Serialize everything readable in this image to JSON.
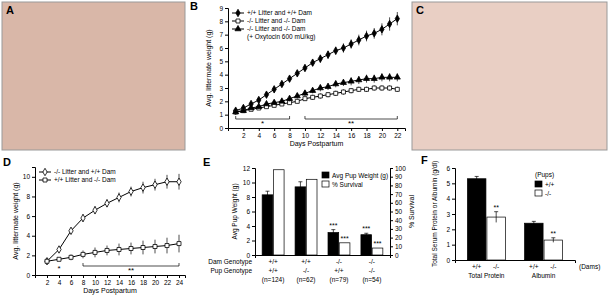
{
  "photos": [
    {
      "panel_label": "A"
    },
    {
      "panel_label": "C"
    }
  ],
  "chart_data": [
    {
      "panel_label": "B",
      "type": "line",
      "x": [
        1,
        2,
        3,
        4,
        5,
        6,
        7,
        8,
        9,
        10,
        11,
        12,
        13,
        14,
        15,
        16,
        17,
        18,
        19,
        20,
        21,
        22
      ],
      "xlim": [
        0,
        23
      ],
      "xticks": [
        2,
        4,
        6,
        8,
        10,
        12,
        14,
        16,
        18,
        20,
        22
      ],
      "ylim": [
        0,
        9
      ],
      "yticks": [
        0,
        1,
        2,
        3,
        4,
        5,
        6,
        7,
        8,
        9
      ],
      "x_label": "Days Postpartum",
      "y_label": "Avg. littermate weight (g)",
      "legend": "top-left",
      "legend_note": "(+ Oxytocin 600 mU/kg)",
      "series": [
        {
          "name": "+/+ Litter and +/+ Dam",
          "color": "#000000",
          "marker": "diamond",
          "values": [
            1.3,
            1.5,
            1.8,
            2.1,
            2.5,
            2.9,
            3.3,
            3.7,
            4.1,
            4.5,
            4.9,
            5.2,
            5.5,
            5.8,
            6.0,
            6.3,
            6.6,
            6.9,
            7.1,
            7.4,
            7.8,
            8.2
          ],
          "errors": [
            0.05,
            0.05,
            0.1,
            0.1,
            0.1,
            0.15,
            0.15,
            0.2,
            0.2,
            0.25,
            0.25,
            0.3,
            0.3,
            0.3,
            0.35,
            0.35,
            0.4,
            0.4,
            0.4,
            0.45,
            0.5,
            0.5
          ]
        },
        {
          "name": "-/- Litter and -/- Dam",
          "color": "#000000",
          "marker": "square-open",
          "values": [
            1.2,
            1.3,
            1.4,
            1.5,
            1.6,
            1.7,
            1.8,
            1.9,
            2.0,
            2.2,
            2.3,
            2.4,
            2.5,
            2.6,
            2.7,
            2.8,
            2.9,
            2.9,
            3.0,
            3.0,
            3.0,
            2.9
          ],
          "errors": [
            0.1,
            0.1,
            0.1,
            0.1,
            0.1,
            0.15,
            0.15,
            0.15,
            0.15,
            0.15,
            0.2,
            0.2,
            0.2,
            0.2,
            0.2,
            0.2,
            0.2,
            0.2,
            0.2,
            0.2,
            0.2,
            0.2
          ]
        },
        {
          "name": "-/- Litter and -/- Dam",
          "color": "#000000",
          "marker": "triangle",
          "values": [
            1.2,
            1.3,
            1.5,
            1.6,
            1.8,
            1.9,
            2.0,
            2.2,
            2.4,
            2.6,
            2.8,
            3.0,
            3.1,
            3.3,
            3.4,
            3.5,
            3.6,
            3.7,
            3.7,
            3.8,
            3.8,
            3.8
          ],
          "errors": [
            0.1,
            0.1,
            0.1,
            0.15,
            0.15,
            0.15,
            0.15,
            0.2,
            0.2,
            0.2,
            0.2,
            0.25,
            0.25,
            0.25,
            0.25,
            0.3,
            0.3,
            0.3,
            0.3,
            0.3,
            0.3,
            0.3
          ]
        }
      ],
      "annotations": [
        {
          "text": "*",
          "x": [
            1,
            8
          ]
        },
        {
          "text": "**",
          "x": [
            10,
            22
          ]
        }
      ]
    },
    {
      "panel_label": "D",
      "type": "line",
      "x": [
        2,
        4,
        6,
        8,
        10,
        12,
        14,
        16,
        18,
        20,
        22,
        24
      ],
      "xlim": [
        0,
        25
      ],
      "xticks": [
        2,
        4,
        6,
        8,
        10,
        12,
        14,
        16,
        18,
        20,
        22,
        24
      ],
      "ylim": [
        0,
        11
      ],
      "yticks": [
        0,
        2,
        4,
        6,
        8,
        10
      ],
      "x_label": "Days Postpartum",
      "y_label": "Avg. littermate weight (g)",
      "legend": "top-left",
      "series": [
        {
          "name": "-/- Litter and +/+ Dam",
          "color": "#000000",
          "marker": "diamond-open",
          "values": [
            1.4,
            2.6,
            4.5,
            5.8,
            6.6,
            7.3,
            7.9,
            8.5,
            8.9,
            9.2,
            9.5,
            9.5
          ],
          "errors": [
            0.1,
            0.2,
            0.3,
            0.4,
            0.4,
            0.4,
            0.5,
            0.5,
            0.6,
            0.6,
            0.7,
            0.8
          ]
        },
        {
          "name": "+/+ Litter and -/- Dam",
          "color": "#000000",
          "marker": "square-open",
          "values": [
            1.4,
            1.6,
            1.8,
            2.1,
            2.3,
            2.5,
            2.6,
            2.7,
            2.8,
            2.9,
            3.0,
            3.2
          ],
          "errors": [
            0.1,
            0.2,
            0.3,
            0.4,
            0.5,
            0.5,
            0.6,
            0.6,
            0.7,
            0.7,
            0.8,
            0.9
          ]
        }
      ],
      "annotations": [
        {
          "text": "*",
          "x": 4
        },
        {
          "text": "**",
          "x": [
            8,
            24
          ]
        }
      ]
    },
    {
      "panel_label": "E",
      "type": "bar",
      "categories": [
        "(n=124)",
        "(n=62)",
        "(n=79)",
        "(n=54)"
      ],
      "row_labels": [
        {
          "label": "Dam Genotype",
          "values": [
            "+/+",
            "+/+",
            "-/-",
            "-/-"
          ]
        },
        {
          "label": "Pup Genotype",
          "values": [
            "+/+",
            "-/-",
            "+/+",
            "-/-"
          ]
        }
      ],
      "ylim": [
        0,
        12
      ],
      "yticks": [
        0,
        2,
        4,
        6,
        8,
        10,
        12
      ],
      "y2lim": [
        0,
        100
      ],
      "y2ticks": [
        0,
        10,
        20,
        30,
        40,
        50,
        60,
        70,
        80,
        90,
        100
      ],
      "y_label": "Avg Pup Weight (g)",
      "y2_label": "% Survival",
      "legend": "top-right",
      "series": [
        {
          "name": "Avg Pup Weight (g)",
          "color": "#000000",
          "values": [
            8.3,
            9.4,
            3.1,
            2.8
          ],
          "errors": [
            0.5,
            0.7,
            0.4,
            0.2
          ],
          "marks": [
            null,
            null,
            "***",
            "***"
          ]
        },
        {
          "name": "% Survival",
          "color": "#ffffff",
          "axis": "y2",
          "values": [
            98,
            87,
            14,
            8
          ],
          "marks": [
            null,
            null,
            "***",
            "***"
          ]
        }
      ]
    },
    {
      "panel_label": "F",
      "type": "bar",
      "categories": [
        "Total Protein",
        "Albumin"
      ],
      "bar_labels": [
        "+/+",
        "-/-"
      ],
      "bar_labels_title": "(Dams)",
      "legend_title": "(Pups)",
      "legend": "top-right",
      "ylim": [
        0,
        6
      ],
      "yticks": [
        0,
        1,
        2,
        3,
        4,
        5,
        6
      ],
      "y_label": "Total Serum Protein or Albumin (g/dl)",
      "series": [
        {
          "name": "+/+",
          "color": "#000000",
          "values": [
            5.3,
            2.4
          ],
          "errors": [
            0.15,
            0.12
          ]
        },
        {
          "name": "-/-",
          "color": "#ffffff",
          "values": [
            2.8,
            1.3
          ],
          "errors": [
            0.35,
            0.15
          ],
          "marks": [
            "**",
            "**"
          ]
        }
      ]
    }
  ]
}
